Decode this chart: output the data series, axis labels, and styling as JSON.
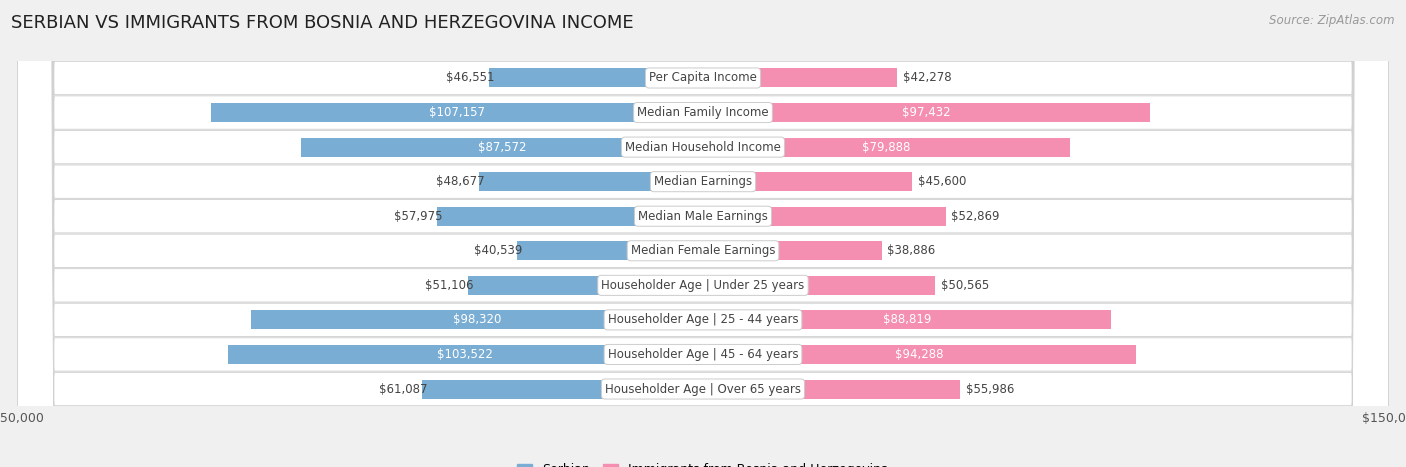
{
  "title": "SERBIAN VS IMMIGRANTS FROM BOSNIA AND HERZEGOVINA INCOME",
  "source": "Source: ZipAtlas.com",
  "categories": [
    "Per Capita Income",
    "Median Family Income",
    "Median Household Income",
    "Median Earnings",
    "Median Male Earnings",
    "Median Female Earnings",
    "Householder Age | Under 25 years",
    "Householder Age | 25 - 44 years",
    "Householder Age | 45 - 64 years",
    "Householder Age | Over 65 years"
  ],
  "serbian_values": [
    46551,
    107157,
    87572,
    48677,
    57975,
    40539,
    51106,
    98320,
    103522,
    61087
  ],
  "immigrant_values": [
    42278,
    97432,
    79888,
    45600,
    52869,
    38886,
    50565,
    88819,
    94288,
    55986
  ],
  "serbian_labels": [
    "$46,551",
    "$107,157",
    "$87,572",
    "$48,677",
    "$57,975",
    "$40,539",
    "$51,106",
    "$98,320",
    "$103,522",
    "$61,087"
  ],
  "immigrant_labels": [
    "$42,278",
    "$97,432",
    "$79,888",
    "$45,600",
    "$52,869",
    "$38,886",
    "$50,565",
    "$88,819",
    "$94,288",
    "$55,986"
  ],
  "serbian_color": "#7aadd4",
  "serbian_color_dark": "#4a90c4",
  "immigrant_color": "#f48fb1",
  "immigrant_color_dark": "#e91e8c",
  "max_value": 150000,
  "legend_serbian": "Serbian",
  "legend_immigrant": "Immigrants from Bosnia and Herzegovina",
  "background_color": "#f0f0f0",
  "row_bg_color": "#ffffff",
  "bar_height": 0.55,
  "label_fontsize": 8.5,
  "category_fontsize": 8.5,
  "title_fontsize": 13,
  "inside_threshold": 75000,
  "serbian_label_inside": [
    false,
    true,
    true,
    false,
    false,
    false,
    false,
    true,
    true,
    false
  ],
  "immigrant_label_inside": [
    false,
    true,
    true,
    false,
    false,
    false,
    false,
    true,
    true,
    false
  ]
}
